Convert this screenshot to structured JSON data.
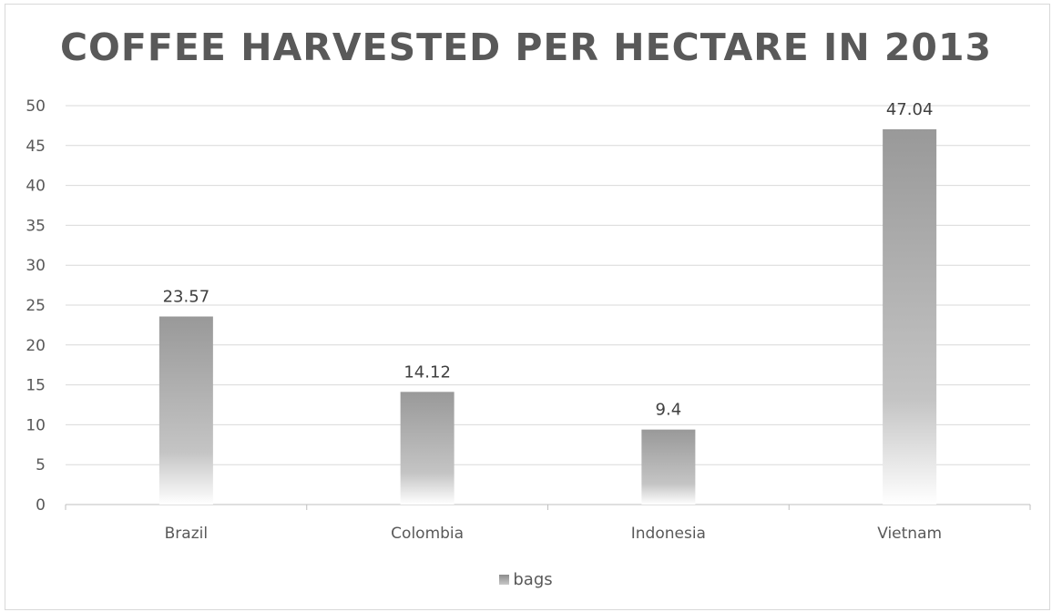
{
  "chart_data": {
    "type": "bar",
    "title": "COFFEE HARVESTED PER HECTARE IN 2013",
    "categories": [
      "Brazil",
      "Colombia",
      "Indonesia",
      "Vietnam"
    ],
    "series": [
      {
        "name": "bags",
        "values": [
          23.57,
          14.12,
          9.4,
          47.04
        ]
      }
    ],
    "data_labels": [
      "23.57",
      "14.12",
      "9.4",
      "47.04"
    ],
    "ylim": [
      0,
      50
    ],
    "yticks": [
      0,
      5,
      10,
      15,
      20,
      25,
      30,
      35,
      40,
      45,
      50
    ],
    "grid": true,
    "legend_position": "bottom",
    "colors": {
      "bar_top": "#999999",
      "bar_bottom": "#ffffff",
      "grid": "#d9d9d9",
      "text": "#595959"
    }
  }
}
